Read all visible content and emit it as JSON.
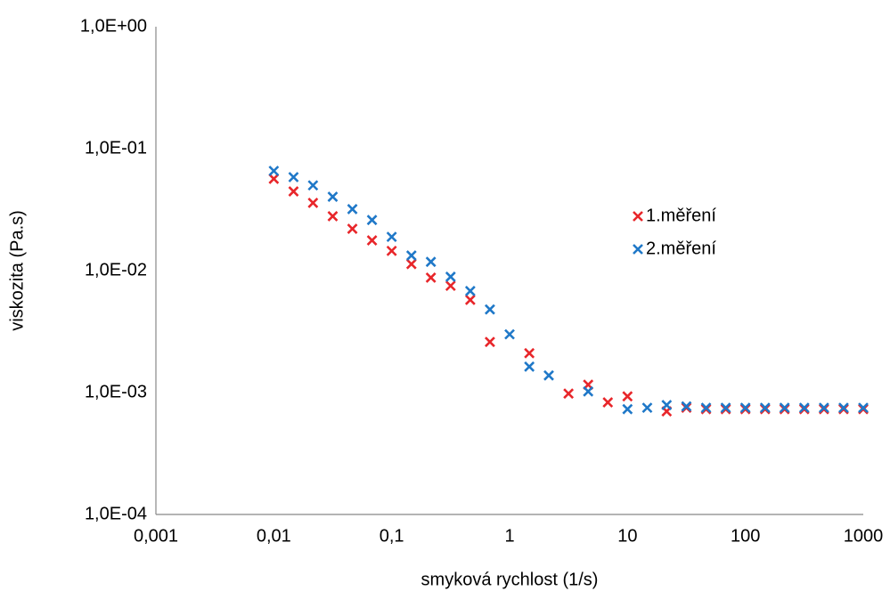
{
  "chart_data": {
    "type": "scatter",
    "x_label": "smyková rychlost (1/s)",
    "y_label": "viskozita (Pa.s)",
    "xscale": "log",
    "yscale": "log",
    "grid": false,
    "legend_position": "right",
    "xlim": [
      0.001,
      1000
    ],
    "ylim": [
      0.0001,
      1
    ],
    "xticks": [
      {
        "value": 0.001,
        "label": "0,001"
      },
      {
        "value": 0.01,
        "label": "0,01"
      },
      {
        "value": 0.1,
        "label": "0,1"
      },
      1,
      10,
      100,
      1000
    ],
    "yticks": [
      {
        "value": 0.0001,
        "label": "1,0E-04"
      },
      {
        "value": 0.001,
        "label": "1,0E-03"
      },
      {
        "value": 0.01,
        "label": "1,0E-02"
      },
      {
        "value": 0.1,
        "label": "1,0E-01"
      },
      {
        "value": 1,
        "label": "1,0E+00"
      }
    ],
    "series": [
      {
        "name": "1.měření",
        "color": "#e8262a",
        "x": [
          0.01,
          0.0147,
          0.0215,
          0.0316,
          0.0464,
          0.0681,
          0.1,
          0.147,
          0.215,
          0.316,
          0.464,
          0.681,
          1.47,
          3.16,
          4.64,
          6.81,
          10,
          21.5,
          31.6,
          46.4,
          68.1,
          100,
          147,
          215,
          316,
          464,
          681,
          1000
        ],
        "values": [
          0.0565,
          0.0446,
          0.0359,
          0.0279,
          0.022,
          0.0177,
          0.0145,
          0.0113,
          0.00875,
          0.0075,
          0.00575,
          0.0026,
          0.0021,
          0.00098,
          0.00116,
          0.00083,
          0.00093,
          0.0007,
          0.00075,
          0.00073,
          0.00073,
          0.00073,
          0.00073,
          0.00073,
          0.00073,
          0.00073,
          0.00073,
          0.00073
        ]
      },
      {
        "name": "2.měření",
        "color": "#1f78c8",
        "x": [
          0.01,
          0.0147,
          0.0215,
          0.0316,
          0.0464,
          0.0681,
          0.1,
          0.147,
          0.215,
          0.316,
          0.464,
          0.681,
          1,
          1.47,
          2.15,
          4.64,
          10,
          14.7,
          21.5,
          31.6,
          46.4,
          68.1,
          100,
          147,
          215,
          316,
          464,
          681,
          1000
        ],
        "values": [
          0.0657,
          0.0584,
          0.05,
          0.0403,
          0.0319,
          0.026,
          0.0189,
          0.0133,
          0.0118,
          0.0089,
          0.0068,
          0.0048,
          0.003,
          0.00163,
          0.00138,
          0.00102,
          0.00073,
          0.00075,
          0.00079,
          0.00077,
          0.00075,
          0.00075,
          0.00075,
          0.00075,
          0.00075,
          0.00075,
          0.00075,
          0.00075,
          0.00075
        ]
      }
    ]
  }
}
